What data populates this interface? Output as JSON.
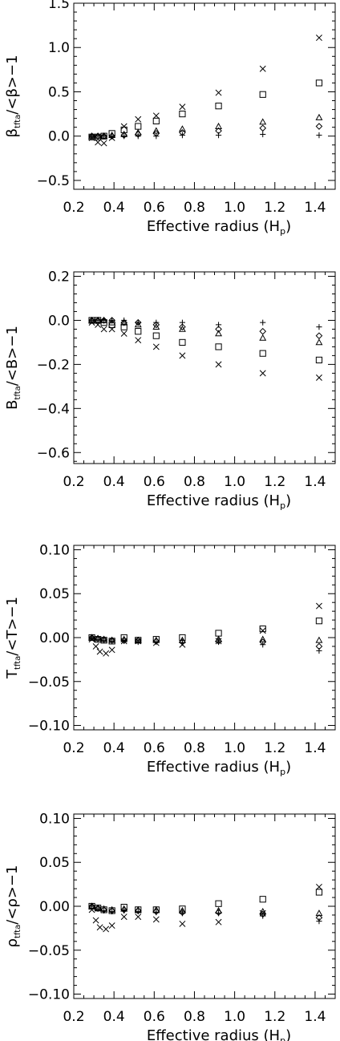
{
  "chart_data": [
    {
      "type": "scatter",
      "ylabel": {
        "main": "β",
        "sub": "tfta",
        "rest": "/<β>−1"
      },
      "xlabel": "Effective radius (H",
      "xlabel_sub": "p",
      "xlabel_close": ")",
      "xlim": [
        0.2,
        1.5
      ],
      "ylim": [
        -0.6,
        1.5
      ],
      "xticks": [
        "0.2",
        "0.4",
        "0.6",
        "0.8",
        "1.0",
        "1.2",
        "1.4"
      ],
      "xtick_values": [
        0.2,
        0.4,
        0.6,
        0.8,
        1.0,
        1.2,
        1.4
      ],
      "yticks": [
        "−0.5",
        "0.0",
        "0.5",
        "1.0",
        "1.5"
      ],
      "ytick_values": [
        -0.5,
        0.0,
        0.5,
        1.0,
        1.5
      ],
      "series": [
        {
          "marker": "cross",
          "x": [
            0.29,
            0.32,
            0.35,
            0.39,
            0.45,
            0.52,
            0.61,
            0.74,
            0.92,
            1.14,
            1.42
          ],
          "y": [
            -0.02,
            -0.07,
            -0.08,
            -0.02,
            0.11,
            0.19,
            0.23,
            0.33,
            0.49,
            0.76,
            1.11
          ]
        },
        {
          "marker": "square",
          "x": [
            0.29,
            0.32,
            0.35,
            0.39,
            0.45,
            0.52,
            0.61,
            0.74,
            0.92,
            1.14,
            1.42
          ],
          "y": [
            -0.01,
            -0.01,
            0.0,
            0.03,
            0.07,
            0.11,
            0.17,
            0.25,
            0.34,
            0.47,
            0.6
          ]
        },
        {
          "marker": "triangle",
          "x": [
            0.29,
            0.32,
            0.35,
            0.39,
            0.45,
            0.52,
            0.61,
            0.74,
            0.92,
            1.14,
            1.42
          ],
          "y": [
            0.0,
            0.0,
            0.0,
            0.01,
            0.02,
            0.04,
            0.06,
            0.08,
            0.11,
            0.16,
            0.21
          ]
        },
        {
          "marker": "diamond",
          "x": [
            0.29,
            0.32,
            0.35,
            0.39,
            0.45,
            0.52,
            0.61,
            0.74,
            0.92,
            1.14,
            1.42
          ],
          "y": [
            0.0,
            0.0,
            0.0,
            0.0,
            0.01,
            0.02,
            0.03,
            0.04,
            0.06,
            0.09,
            0.11
          ]
        },
        {
          "marker": "plus",
          "x": [
            0.29,
            0.32,
            0.35,
            0.39,
            0.45,
            0.52,
            0.61,
            0.74,
            0.92,
            1.14,
            1.42
          ],
          "y": [
            0.0,
            0.0,
            0.0,
            0.0,
            0.0,
            0.0,
            0.0,
            0.01,
            0.01,
            0.02,
            0.01
          ]
        }
      ]
    },
    {
      "type": "scatter",
      "ylabel": {
        "main": "B",
        "sub": "tfta",
        "rest": "/<B>−1"
      },
      "xlabel": "Effective radius (H",
      "xlabel_sub": "p",
      "xlabel_close": ")",
      "xlim": [
        0.2,
        1.5
      ],
      "ylim": [
        -0.65,
        0.22
      ],
      "xticks": [
        "0.2",
        "0.4",
        "0.6",
        "0.8",
        "1.0",
        "1.2",
        "1.4"
      ],
      "xtick_values": [
        0.2,
        0.4,
        0.6,
        0.8,
        1.0,
        1.2,
        1.4
      ],
      "yticks": [
        "−0.6",
        "−0.4",
        "−0.2",
        "0.0",
        "0.2"
      ],
      "ytick_values": [
        -0.6,
        -0.4,
        -0.2,
        0.0,
        0.2
      ],
      "series": [
        {
          "marker": "cross",
          "x": [
            0.29,
            0.32,
            0.35,
            0.39,
            0.45,
            0.52,
            0.61,
            0.74,
            0.92,
            1.14,
            1.42
          ],
          "y": [
            -0.01,
            -0.02,
            -0.04,
            -0.04,
            -0.06,
            -0.09,
            -0.12,
            -0.16,
            -0.2,
            -0.24,
            -0.26
          ]
        },
        {
          "marker": "square",
          "x": [
            0.29,
            0.32,
            0.35,
            0.39,
            0.45,
            0.52,
            0.61,
            0.74,
            0.92,
            1.14,
            1.42
          ],
          "y": [
            0.0,
            0.0,
            -0.01,
            -0.02,
            -0.03,
            -0.05,
            -0.07,
            -0.1,
            -0.12,
            -0.15,
            -0.18
          ]
        },
        {
          "marker": "triangle",
          "x": [
            0.29,
            0.32,
            0.35,
            0.39,
            0.45,
            0.52,
            0.61,
            0.74,
            0.92,
            1.14,
            1.42
          ],
          "y": [
            0.0,
            0.0,
            0.0,
            -0.01,
            -0.01,
            -0.02,
            -0.03,
            -0.04,
            -0.06,
            -0.08,
            -0.1
          ]
        },
        {
          "marker": "diamond",
          "x": [
            0.29,
            0.32,
            0.35,
            0.39,
            0.45,
            0.52,
            0.61,
            0.74,
            0.92,
            1.14,
            1.42
          ],
          "y": [
            0.0,
            0.0,
            0.0,
            0.0,
            -0.01,
            -0.01,
            -0.02,
            -0.03,
            -0.04,
            -0.05,
            -0.07
          ]
        },
        {
          "marker": "plus",
          "x": [
            0.29,
            0.32,
            0.35,
            0.39,
            0.45,
            0.52,
            0.61,
            0.74,
            0.92,
            1.14,
            1.42
          ],
          "y": [
            0.0,
            0.0,
            0.0,
            0.0,
            0.0,
            -0.01,
            -0.01,
            -0.01,
            -0.02,
            -0.01,
            -0.03
          ]
        }
      ]
    },
    {
      "type": "scatter",
      "ylabel": {
        "main": "T",
        "sub": "tfta",
        "rest": "/<T>−1"
      },
      "xlabel": "Effective radius (H",
      "xlabel_sub": "p",
      "xlabel_close": ")",
      "xlim": [
        0.2,
        1.5
      ],
      "ylim": [
        -0.105,
        0.105
      ],
      "xticks": [
        "0.2",
        "0.4",
        "0.6",
        "0.8",
        "1.0",
        "1.2",
        "1.4"
      ],
      "xtick_values": [
        0.2,
        0.4,
        0.6,
        0.8,
        1.0,
        1.2,
        1.4
      ],
      "yticks": [
        "−0.10",
        "−0.05",
        "0.00",
        "0.05",
        "0.10"
      ],
      "ytick_values": [
        -0.1,
        -0.05,
        0.0,
        0.05,
        0.1
      ],
      "series": [
        {
          "marker": "cross",
          "x": [
            0.29,
            0.31,
            0.33,
            0.36,
            0.39,
            0.45,
            0.52,
            0.61,
            0.74,
            0.92,
            1.14,
            1.42
          ],
          "y": [
            -0.002,
            -0.01,
            -0.016,
            -0.018,
            -0.014,
            -0.004,
            -0.004,
            -0.006,
            -0.008,
            -0.004,
            0.008,
            0.036
          ]
        },
        {
          "marker": "square",
          "x": [
            0.29,
            0.32,
            0.35,
            0.39,
            0.45,
            0.52,
            0.61,
            0.74,
            0.92,
            1.14,
            1.42
          ],
          "y": [
            0.0,
            -0.002,
            -0.003,
            -0.004,
            0.0,
            -0.003,
            -0.002,
            0.0,
            0.005,
            0.01,
            0.019
          ]
        },
        {
          "marker": "triangle",
          "x": [
            0.29,
            0.32,
            0.35,
            0.39,
            0.45,
            0.52,
            0.61,
            0.74,
            0.92,
            1.14,
            1.42
          ],
          "y": [
            0.0,
            -0.001,
            -0.002,
            -0.003,
            -0.002,
            -0.003,
            -0.003,
            -0.003,
            -0.002,
            -0.002,
            -0.003
          ]
        },
        {
          "marker": "diamond",
          "x": [
            0.29,
            0.32,
            0.35,
            0.39,
            0.45,
            0.52,
            0.61,
            0.74,
            0.92,
            1.14,
            1.42
          ],
          "y": [
            0.0,
            -0.001,
            -0.002,
            -0.003,
            -0.003,
            -0.003,
            -0.004,
            -0.005,
            -0.004,
            -0.005,
            -0.01
          ]
        },
        {
          "marker": "plus",
          "x": [
            0.29,
            0.32,
            0.35,
            0.39,
            0.45,
            0.52,
            0.61,
            0.74,
            0.92,
            1.14,
            1.42
          ],
          "y": [
            0.0,
            -0.002,
            -0.003,
            -0.004,
            -0.004,
            -0.005,
            -0.005,
            -0.006,
            -0.005,
            -0.008,
            -0.015
          ]
        }
      ]
    },
    {
      "type": "scatter",
      "ylabel": {
        "main": "ρ",
        "sub": "tfta",
        "rest": "/<ρ>−1"
      },
      "xlabel": "Effective radius (H",
      "xlabel_sub": "p",
      "xlabel_close": ")",
      "xlim": [
        0.2,
        1.5
      ],
      "ylim": [
        -0.105,
        0.105
      ],
      "xticks": [
        "0.2",
        "0.4",
        "0.6",
        "0.8",
        "1.0",
        "1.2",
        "1.4"
      ],
      "xtick_values": [
        0.2,
        0.4,
        0.6,
        0.8,
        1.0,
        1.2,
        1.4
      ],
      "yticks": [
        "−0.10",
        "−0.05",
        "0.00",
        "0.05",
        "0.10"
      ],
      "ytick_values": [
        -0.1,
        -0.05,
        0.0,
        0.05,
        0.1
      ],
      "series": [
        {
          "marker": "cross",
          "x": [
            0.29,
            0.31,
            0.33,
            0.36,
            0.39,
            0.45,
            0.52,
            0.61,
            0.74,
            0.92,
            1.14,
            1.42
          ],
          "y": [
            -0.004,
            -0.016,
            -0.024,
            -0.026,
            -0.022,
            -0.012,
            -0.012,
            -0.015,
            -0.02,
            -0.018,
            -0.008,
            0.022
          ]
        },
        {
          "marker": "square",
          "x": [
            0.29,
            0.32,
            0.35,
            0.39,
            0.45,
            0.52,
            0.61,
            0.74,
            0.92,
            1.14,
            1.42
          ],
          "y": [
            0.0,
            -0.002,
            -0.004,
            -0.005,
            -0.001,
            -0.004,
            -0.004,
            -0.003,
            0.003,
            0.008,
            0.016
          ]
        },
        {
          "marker": "triangle",
          "x": [
            0.29,
            0.32,
            0.35,
            0.39,
            0.45,
            0.52,
            0.61,
            0.74,
            0.92,
            1.14,
            1.42
          ],
          "y": [
            0.0,
            -0.002,
            -0.003,
            -0.004,
            -0.003,
            -0.004,
            -0.004,
            -0.005,
            -0.005,
            -0.006,
            -0.008
          ]
        },
        {
          "marker": "diamond",
          "x": [
            0.29,
            0.32,
            0.35,
            0.39,
            0.45,
            0.52,
            0.61,
            0.74,
            0.92,
            1.14,
            1.42
          ],
          "y": [
            0.0,
            -0.002,
            -0.004,
            -0.005,
            -0.004,
            -0.005,
            -0.006,
            -0.007,
            -0.007,
            -0.009,
            -0.013
          ]
        },
        {
          "marker": "plus",
          "x": [
            0.29,
            0.32,
            0.35,
            0.39,
            0.45,
            0.52,
            0.61,
            0.74,
            0.92,
            1.14,
            1.42
          ],
          "y": [
            0.0,
            -0.003,
            -0.005,
            -0.006,
            -0.005,
            -0.006,
            -0.007,
            -0.008,
            -0.008,
            -0.011,
            -0.017
          ]
        }
      ]
    }
  ]
}
